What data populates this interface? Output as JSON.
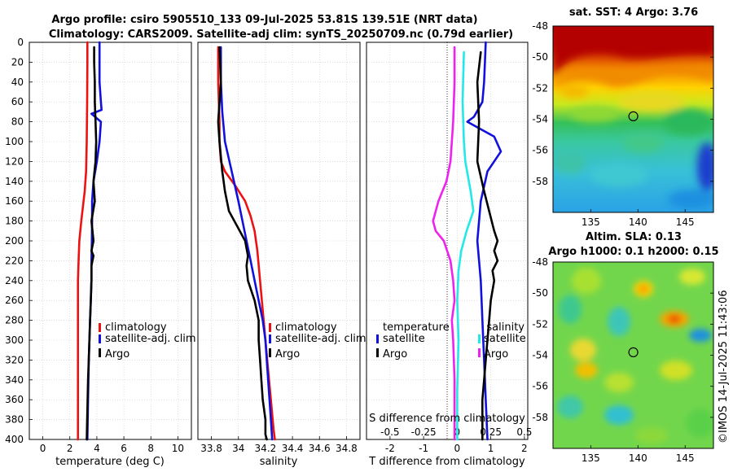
{
  "titles": {
    "line1": "Argo profile: csiro 5905510_133 09-Jul-2025 53.81S 139.51E (NRT data)",
    "line2": "Climatology: CARS2009. Satellite-adj clim: synTS_20250709.nc (0.79d earlier)"
  },
  "watermark": "©IMOS 14-Jul-2025 11:43:06",
  "colors": {
    "climatology": "#ee1111",
    "satellite": "#1111dd",
    "argo": "#000000",
    "salinity_satellite": "#22e8e8",
    "salinity_argo": "#ee22ee"
  },
  "chart_data": [
    {
      "id": "temperature",
      "type": "line",
      "xlabel": "temperature (deg C)",
      "ylabel": "",
      "xlim": [
        -1,
        11
      ],
      "ylim": [
        400,
        0
      ],
      "xticks": [
        "0",
        "2",
        "4",
        "6",
        "8",
        "10"
      ],
      "xtick_values": [
        0,
        2,
        4,
        6,
        8,
        10
      ],
      "yticks": [
        "0",
        "20",
        "40",
        "60",
        "80",
        "100",
        "120",
        "140",
        "160",
        "180",
        "200",
        "220",
        "240",
        "260",
        "280",
        "300",
        "320",
        "340",
        "360",
        "380",
        "400"
      ],
      "grid": true,
      "legend": [
        "climatology",
        "satellite-adj. clim",
        "Argo"
      ],
      "legend_position": "lower-right",
      "series": [
        {
          "name": "climatology",
          "color": "#ee1111",
          "x": [
            3.3,
            3.3,
            3.28,
            3.25,
            3.2,
            3.1,
            2.85,
            2.7,
            2.65,
            2.6,
            2.6,
            2.6,
            2.6,
            2.6
          ],
          "y": [
            0,
            20,
            60,
            100,
            130,
            150,
            180,
            200,
            220,
            240,
            280,
            320,
            360,
            400
          ]
        },
        {
          "name": "satellite-adj. clim",
          "color": "#1111dd",
          "x": [
            4.2,
            4.2,
            4.2,
            4.3,
            4.35,
            3.6,
            4.3,
            4.2,
            4.0,
            3.75,
            3.65,
            3.65,
            3.63,
            3.6,
            3.6,
            3.55,
            3.5,
            3.45,
            3.4,
            3.35,
            3.3
          ],
          "y": [
            0,
            20,
            40,
            60,
            68,
            72,
            80,
            100,
            120,
            140,
            160,
            180,
            200,
            220,
            240,
            260,
            280,
            300,
            320,
            360,
            400
          ]
        },
        {
          "name": "Argo",
          "color": "#000000",
          "x": [
            3.8,
            3.8,
            3.85,
            3.85,
            3.9,
            3.95,
            3.9,
            3.75,
            3.85,
            3.6,
            3.75,
            3.6,
            3.75,
            3.6,
            3.6,
            3.55,
            3.5,
            3.45,
            3.4,
            3.35,
            3.3,
            3.25
          ],
          "y": [
            5,
            20,
            40,
            60,
            80,
            100,
            120,
            140,
            160,
            180,
            200,
            210,
            215,
            225,
            240,
            260,
            280,
            300,
            320,
            340,
            370,
            400
          ]
        }
      ]
    },
    {
      "id": "salinity",
      "type": "line",
      "xlabel": "salinity",
      "ylabel": "",
      "xlim": [
        33.7,
        34.9
      ],
      "ylim": [
        400,
        0
      ],
      "xticks": [
        "33.8",
        "34",
        "34.2",
        "34.4",
        "34.6",
        "34.8"
      ],
      "xtick_values": [
        33.8,
        34.0,
        34.2,
        34.4,
        34.6,
        34.8
      ],
      "grid": true,
      "legend": [
        "climatology",
        "satellite-adj. clim",
        "Argo"
      ],
      "legend_position": "lower-right",
      "series": [
        {
          "name": "climatology",
          "color": "#ee1111",
          "x": [
            33.85,
            33.85,
            33.86,
            33.86,
            33.87,
            33.9,
            33.98,
            34.05,
            34.09,
            34.12,
            34.14,
            34.16,
            34.18,
            34.2,
            34.22,
            34.24,
            34.26,
            34.27
          ],
          "y": [
            5,
            40,
            80,
            100,
            120,
            130,
            145,
            160,
            175,
            190,
            210,
            240,
            270,
            300,
            330,
            360,
            390,
            400
          ]
        },
        {
          "name": "satellite-adj. clim",
          "color": "#1111dd",
          "x": [
            33.87,
            33.87,
            33.88,
            33.9,
            33.95,
            34.0,
            34.03,
            34.06,
            34.09,
            34.12,
            34.15,
            34.18,
            34.2,
            34.22,
            34.24,
            34.25
          ],
          "y": [
            5,
            40,
            70,
            100,
            130,
            160,
            180,
            200,
            220,
            240,
            260,
            280,
            300,
            340,
            380,
            400
          ]
        },
        {
          "name": "Argo",
          "color": "#000000",
          "x": [
            33.86,
            33.87,
            33.85,
            33.86,
            33.88,
            33.9,
            33.93,
            33.99,
            34.05,
            34.07,
            34.06,
            34.07,
            34.12,
            34.15,
            34.15,
            34.16,
            34.17,
            34.18,
            34.2,
            34.2,
            34.21
          ],
          "y": [
            5,
            40,
            80,
            100,
            130,
            150,
            170,
            185,
            200,
            215,
            225,
            240,
            260,
            280,
            300,
            320,
            340,
            360,
            380,
            395,
            400
          ]
        }
      ]
    },
    {
      "id": "differences",
      "type": "line",
      "xlabel": "T difference from climatology",
      "xlabel_top": "S difference from climatology",
      "xlim": [
        -2.7,
        2.1
      ],
      "ylim": [
        400,
        0
      ],
      "xticks": [
        "-2",
        "-1",
        "0",
        "1",
        "2"
      ],
      "xtick_values": [
        -2,
        -1,
        0,
        1,
        2
      ],
      "sticks": [
        "-0.5",
        "-0.25",
        "0",
        "0.25",
        "0.5"
      ],
      "stick_values": [
        -0.5,
        -0.25,
        0,
        0.25,
        0.5
      ],
      "grid": true,
      "legend_temperature": {
        "title": "temperature",
        "entries": [
          "satellite",
          "Argo"
        ]
      },
      "legend_salinity": {
        "title": "salinity",
        "entries": [
          "satellite",
          "Argo"
        ]
      },
      "legend_position": "lower",
      "series": [
        {
          "name": "temperature satellite",
          "color": "#1111dd",
          "x": [
            0.85,
            0.8,
            0.75,
            0.5,
            0.3,
            1.1,
            1.3,
            0.9,
            0.7,
            0.6,
            0.7,
            0.75,
            0.8,
            0.85,
            0.9
          ],
          "y": [
            0,
            40,
            60,
            75,
            80,
            95,
            110,
            130,
            160,
            200,
            240,
            280,
            320,
            360,
            400
          ]
        },
        {
          "name": "temperature Argo",
          "color": "#000000",
          "x": [
            0.7,
            0.6,
            0.65,
            0.6,
            0.8,
            0.95,
            1.1,
            1.2,
            1.1,
            1.2,
            1.05,
            1.1,
            1.0,
            0.95,
            0.9,
            0.85,
            0.8,
            0.75,
            0.75
          ],
          "y": [
            10,
            40,
            80,
            120,
            150,
            170,
            190,
            200,
            210,
            220,
            230,
            240,
            260,
            280,
            300,
            320,
            340,
            360,
            400
          ]
        },
        {
          "name": "salinity satellite",
          "color": "#22e8e8",
          "x": [
            0.05,
            0.04,
            0.05,
            0.06,
            0.1,
            0.12,
            0.07,
            0.03,
            0.01,
            0.0,
            0.01,
            0.0,
            0.0
          ],
          "y": [
            10,
            60,
            100,
            120,
            150,
            170,
            190,
            210,
            230,
            260,
            300,
            350,
            400
          ]
        },
        {
          "name": "salinity Argo",
          "color": "#ee22ee",
          "x": [
            -0.02,
            -0.02,
            -0.03,
            -0.04,
            -0.05,
            -0.08,
            -0.14,
            -0.18,
            -0.16,
            -0.1,
            -0.05,
            -0.03,
            -0.02,
            -0.04,
            -0.03,
            -0.02,
            -0.02
          ],
          "y": [
            5,
            40,
            80,
            100,
            120,
            140,
            160,
            180,
            190,
            200,
            220,
            240,
            260,
            280,
            300,
            340,
            400
          ]
        }
      ]
    },
    {
      "id": "sst-map",
      "type": "heatmap",
      "title": "sat. SST: 4 Argo: 3.76",
      "xlim": [
        131,
        148
      ],
      "ylim": [
        -60,
        -48
      ],
      "xticks": [
        "135",
        "140",
        "145"
      ],
      "xtick_values": [
        135,
        140,
        145
      ],
      "yticks": [
        "-48",
        "-50",
        "-52",
        "-54",
        "-56",
        "-58"
      ],
      "ytick_values": [
        -48,
        -50,
        -52,
        -54,
        -56,
        -58
      ],
      "marker": {
        "lon": 139.51,
        "lat": -53.81
      }
    },
    {
      "id": "sla-map",
      "type": "heatmap",
      "title": "Altim. SLA: 0.13",
      "subtitle": "Argo h1000: 0.1 h2000: 0.15",
      "xlim": [
        131,
        148
      ],
      "ylim": [
        -60,
        -48
      ],
      "xticks": [
        "135",
        "140",
        "145"
      ],
      "xtick_values": [
        135,
        140,
        145
      ],
      "yticks": [
        "-48",
        "-50",
        "-52",
        "-54",
        "-56",
        "-58"
      ],
      "ytick_values": [
        -48,
        -50,
        -52,
        -54,
        -56,
        -58
      ],
      "marker": {
        "lon": 139.51,
        "lat": -53.81
      }
    }
  ]
}
